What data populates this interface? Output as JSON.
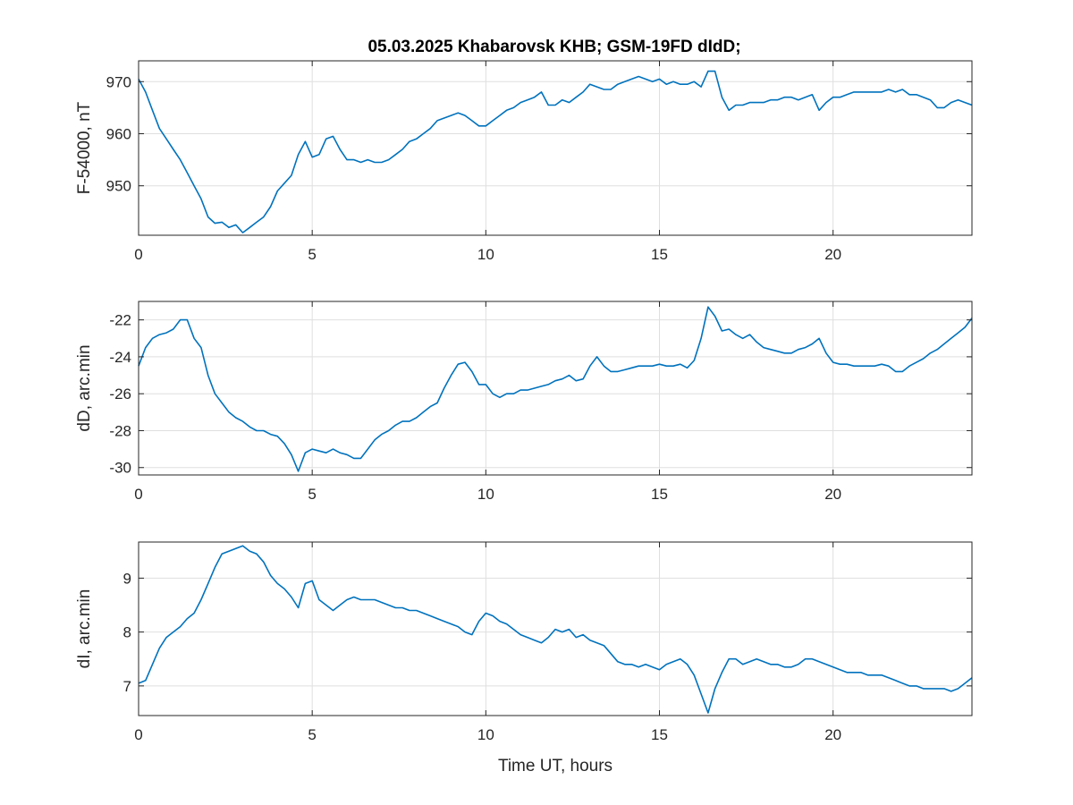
{
  "title": "05.03.2025  Khabarovsk KHB; GSM-19FD dIdD;",
  "chart_data": [
    {
      "type": "line",
      "ylabel": "F-54000, nT",
      "xlim": [
        0,
        24
      ],
      "ylim": [
        940.5,
        974
      ],
      "xticks": [
        0,
        5,
        10,
        15,
        20
      ],
      "xtick_labels": [
        "0",
        "5",
        "10",
        "15",
        "20"
      ],
      "yticks": [
        950,
        960,
        970
      ],
      "ytick_labels": [
        "950",
        "960",
        "970"
      ],
      "grid": true,
      "color": "#0072BD",
      "x": [
        0,
        0.2,
        0.4,
        0.6,
        0.8,
        1.0,
        1.2,
        1.4,
        1.6,
        1.8,
        2.0,
        2.2,
        2.4,
        2.6,
        2.8,
        3.0,
        3.2,
        3.4,
        3.6,
        3.8,
        4.0,
        4.2,
        4.4,
        4.6,
        4.8,
        5.0,
        5.2,
        5.4,
        5.6,
        5.8,
        6.0,
        6.2,
        6.4,
        6.6,
        6.8,
        7.0,
        7.2,
        7.4,
        7.6,
        7.8,
        8.0,
        8.2,
        8.4,
        8.6,
        8.8,
        9.0,
        9.2,
        9.4,
        9.6,
        9.8,
        10.0,
        10.2,
        10.4,
        10.6,
        10.8,
        11.0,
        11.2,
        11.4,
        11.6,
        11.8,
        12.0,
        12.2,
        12.4,
        12.6,
        12.8,
        13.0,
        13.2,
        13.4,
        13.6,
        13.8,
        14.0,
        14.2,
        14.4,
        14.6,
        14.8,
        15.0,
        15.2,
        15.4,
        15.6,
        15.8,
        16.0,
        16.2,
        16.4,
        16.6,
        16.8,
        17.0,
        17.2,
        17.4,
        17.6,
        17.8,
        18.0,
        18.2,
        18.4,
        18.6,
        18.8,
        19.0,
        19.2,
        19.4,
        19.6,
        19.8,
        20.0,
        20.2,
        20.4,
        20.6,
        20.8,
        21.0,
        21.2,
        21.4,
        21.6,
        21.8,
        22.0,
        22.2,
        22.4,
        22.6,
        22.8,
        23.0,
        23.2,
        23.4,
        23.6,
        23.8,
        24.0
      ],
      "y": [
        970.5,
        968,
        964.5,
        961,
        959,
        957,
        955,
        952.5,
        950,
        947.5,
        944,
        942.8,
        943,
        942,
        942.5,
        941,
        942,
        943,
        944,
        946,
        949,
        950.5,
        952,
        956,
        958.5,
        955.5,
        956,
        959,
        959.5,
        957,
        955,
        955,
        954.5,
        955,
        954.5,
        954.5,
        955,
        956,
        957,
        958.5,
        959,
        960,
        961,
        962.5,
        963,
        963.5,
        964,
        963.5,
        962.5,
        961.5,
        961.5,
        962.5,
        963.5,
        964.5,
        965,
        966,
        966.5,
        967,
        968,
        965.5,
        965.5,
        966.5,
        966,
        967,
        968,
        969.5,
        969,
        968.5,
        968.5,
        969.5,
        970,
        970.5,
        971,
        970.5,
        970,
        970.5,
        969.5,
        970,
        969.5,
        969.5,
        970,
        969,
        972,
        972,
        967,
        964.5,
        965.5,
        965.5,
        966,
        966,
        966,
        966.5,
        966.5,
        967,
        967,
        966.5,
        967,
        967.5,
        964.5,
        966,
        967,
        967,
        967.5,
        968,
        968,
        968,
        968,
        968,
        968.5,
        968,
        968.5,
        967.5,
        967.5,
        967,
        966.5,
        965,
        965,
        966,
        966.5,
        966,
        965.5
      ]
    },
    {
      "type": "line",
      "ylabel": "dD, arc.min",
      "xlim": [
        0,
        24
      ],
      "ylim": [
        -30.4,
        -21
      ],
      "xticks": [
        0,
        5,
        10,
        15,
        20
      ],
      "xtick_labels": [
        "0",
        "5",
        "10",
        "15",
        "20"
      ],
      "yticks": [
        -30,
        -28,
        -26,
        -24,
        -22
      ],
      "ytick_labels": [
        "-30",
        "-28",
        "-26",
        "-24",
        "-22"
      ],
      "grid": true,
      "color": "#0072BD",
      "x": [
        0,
        0.2,
        0.4,
        0.6,
        0.8,
        1.0,
        1.2,
        1.4,
        1.6,
        1.8,
        2.0,
        2.2,
        2.4,
        2.6,
        2.8,
        3.0,
        3.2,
        3.4,
        3.6,
        3.8,
        4.0,
        4.2,
        4.4,
        4.6,
        4.8,
        5.0,
        5.2,
        5.4,
        5.6,
        5.8,
        6.0,
        6.2,
        6.4,
        6.6,
        6.8,
        7.0,
        7.2,
        7.4,
        7.6,
        7.8,
        8.0,
        8.2,
        8.4,
        8.6,
        8.8,
        9.0,
        9.2,
        9.4,
        9.6,
        9.8,
        10.0,
        10.2,
        10.4,
        10.6,
        10.8,
        11.0,
        11.2,
        11.4,
        11.6,
        11.8,
        12.0,
        12.2,
        12.4,
        12.6,
        12.8,
        13.0,
        13.2,
        13.4,
        13.6,
        13.8,
        14.0,
        14.2,
        14.4,
        14.6,
        14.8,
        15.0,
        15.2,
        15.4,
        15.6,
        15.8,
        16.0,
        16.2,
        16.4,
        16.6,
        16.8,
        17.0,
        17.2,
        17.4,
        17.6,
        17.8,
        18.0,
        18.2,
        18.4,
        18.6,
        18.8,
        19.0,
        19.2,
        19.4,
        19.6,
        19.8,
        20.0,
        20.2,
        20.4,
        20.6,
        20.8,
        21.0,
        21.2,
        21.4,
        21.6,
        21.8,
        22.0,
        22.2,
        22.4,
        22.6,
        22.8,
        23.0,
        23.2,
        23.4,
        23.6,
        23.8,
        24.0
      ],
      "y": [
        -24.5,
        -23.5,
        -23,
        -22.8,
        -22.7,
        -22.5,
        -22,
        -22,
        -23,
        -23.5,
        -25,
        -26,
        -26.5,
        -27,
        -27.3,
        -27.5,
        -27.8,
        -28,
        -28,
        -28.2,
        -28.3,
        -28.7,
        -29.3,
        -30.2,
        -29.2,
        -29,
        -29.1,
        -29.2,
        -29,
        -29.2,
        -29.3,
        -29.5,
        -29.5,
        -29,
        -28.5,
        -28.2,
        -28,
        -27.7,
        -27.5,
        -27.5,
        -27.3,
        -27,
        -26.7,
        -26.5,
        -25.7,
        -25,
        -24.4,
        -24.3,
        -24.8,
        -25.5,
        -25.5,
        -26,
        -26.2,
        -26,
        -26,
        -25.8,
        -25.8,
        -25.7,
        -25.6,
        -25.5,
        -25.3,
        -25.2,
        -25,
        -25.3,
        -25.2,
        -24.5,
        -24,
        -24.5,
        -24.8,
        -24.8,
        -24.7,
        -24.6,
        -24.5,
        -24.5,
        -24.5,
        -24.4,
        -24.5,
        -24.5,
        -24.4,
        -24.6,
        -24.2,
        -23,
        -21.3,
        -21.8,
        -22.6,
        -22.5,
        -22.8,
        -23,
        -22.8,
        -23.2,
        -23.5,
        -23.6,
        -23.7,
        -23.8,
        -23.8,
        -23.6,
        -23.5,
        -23.3,
        -23,
        -23.8,
        -24.3,
        -24.4,
        -24.4,
        -24.5,
        -24.5,
        -24.5,
        -24.5,
        -24.4,
        -24.5,
        -24.8,
        -24.8,
        -24.5,
        -24.3,
        -24.1,
        -23.8,
        -23.6,
        -23.3,
        -23,
        -22.7,
        -22.4,
        -21.9
      ]
    },
    {
      "type": "line",
      "ylabel": "dI, arc.min",
      "xlabel": "Time UT, hours",
      "xlim": [
        0,
        24
      ],
      "ylim": [
        6.45,
        9.67
      ],
      "xticks": [
        0,
        5,
        10,
        15,
        20
      ],
      "xtick_labels": [
        "0",
        "5",
        "10",
        "15",
        "20"
      ],
      "yticks": [
        7,
        8,
        9
      ],
      "ytick_labels": [
        "7",
        "8",
        "9"
      ],
      "grid": true,
      "color": "#0072BD",
      "x": [
        0,
        0.2,
        0.4,
        0.6,
        0.8,
        1.0,
        1.2,
        1.4,
        1.6,
        1.8,
        2.0,
        2.2,
        2.4,
        2.6,
        2.8,
        3.0,
        3.2,
        3.4,
        3.6,
        3.8,
        4.0,
        4.2,
        4.4,
        4.6,
        4.8,
        5.0,
        5.2,
        5.4,
        5.6,
        5.8,
        6.0,
        6.2,
        6.4,
        6.6,
        6.8,
        7.0,
        7.2,
        7.4,
        7.6,
        7.8,
        8.0,
        8.2,
        8.4,
        8.6,
        8.8,
        9.0,
        9.2,
        9.4,
        9.6,
        9.8,
        10.0,
        10.2,
        10.4,
        10.6,
        10.8,
        11.0,
        11.2,
        11.4,
        11.6,
        11.8,
        12.0,
        12.2,
        12.4,
        12.6,
        12.8,
        13.0,
        13.2,
        13.4,
        13.6,
        13.8,
        14.0,
        14.2,
        14.4,
        14.6,
        14.8,
        15.0,
        15.2,
        15.4,
        15.6,
        15.8,
        16.0,
        16.2,
        16.4,
        16.6,
        16.8,
        17.0,
        17.2,
        17.4,
        17.6,
        17.8,
        18.0,
        18.2,
        18.4,
        18.6,
        18.8,
        19.0,
        19.2,
        19.4,
        19.6,
        19.8,
        20.0,
        20.2,
        20.4,
        20.6,
        20.8,
        21.0,
        21.2,
        21.4,
        21.6,
        21.8,
        22.0,
        22.2,
        22.4,
        22.6,
        22.8,
        23.0,
        23.2,
        23.4,
        23.6,
        23.8,
        24.0
      ],
      "y": [
        7.05,
        7.1,
        7.4,
        7.7,
        7.9,
        8,
        8.1,
        8.25,
        8.35,
        8.6,
        8.9,
        9.2,
        9.45,
        9.5,
        9.55,
        9.6,
        9.5,
        9.45,
        9.3,
        9.05,
        8.9,
        8.8,
        8.65,
        8.45,
        8.9,
        8.95,
        8.6,
        8.5,
        8.4,
        8.5,
        8.6,
        8.65,
        8.6,
        8.6,
        8.6,
        8.55,
        8.5,
        8.45,
        8.45,
        8.4,
        8.4,
        8.35,
        8.3,
        8.25,
        8.2,
        8.15,
        8.1,
        8.0,
        7.95,
        8.2,
        8.35,
        8.3,
        8.2,
        8.15,
        8.05,
        7.95,
        7.9,
        7.85,
        7.8,
        7.9,
        8.05,
        8.0,
        8.05,
        7.9,
        7.95,
        7.85,
        7.8,
        7.75,
        7.6,
        7.45,
        7.4,
        7.4,
        7.35,
        7.4,
        7.35,
        7.3,
        7.4,
        7.45,
        7.5,
        7.4,
        7.2,
        6.85,
        6.5,
        6.95,
        7.25,
        7.5,
        7.5,
        7.4,
        7.45,
        7.5,
        7.45,
        7.4,
        7.4,
        7.35,
        7.35,
        7.4,
        7.5,
        7.5,
        7.45,
        7.4,
        7.35,
        7.3,
        7.25,
        7.25,
        7.25,
        7.2,
        7.2,
        7.2,
        7.15,
        7.1,
        7.05,
        7.0,
        7.0,
        6.95,
        6.95,
        6.95,
        6.95,
        6.9,
        6.95,
        7.05,
        7.15
      ]
    }
  ]
}
